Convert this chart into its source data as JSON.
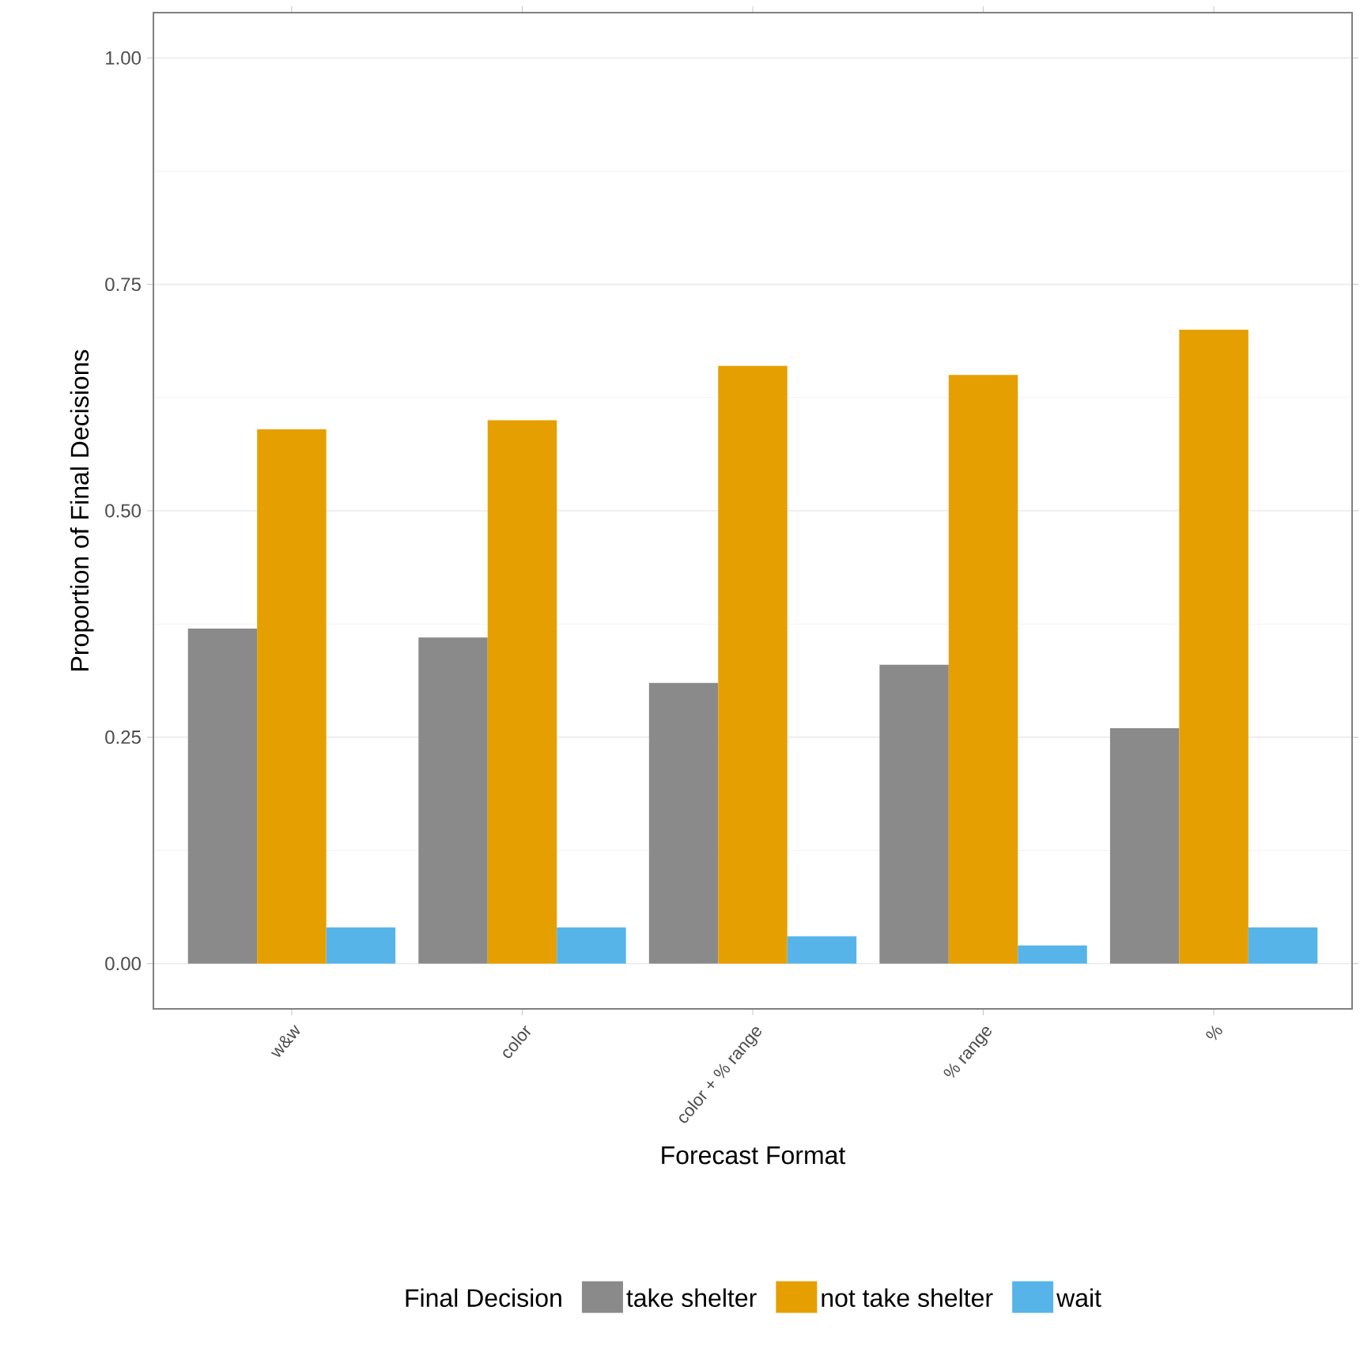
{
  "chart_data": {
    "type": "bar",
    "xlabel": "Forecast Format",
    "ylabel": "Proportion of Final Decisions",
    "legend_title": "Final Decision",
    "categories": [
      "w&w",
      "color",
      "color + % range",
      "% range",
      "%"
    ],
    "series": [
      {
        "name": "take shelter",
        "color": "#8a8a8a",
        "values": [
          0.37,
          0.36,
          0.31,
          0.33,
          0.26
        ]
      },
      {
        "name": "not take shelter",
        "color": "#e69f00",
        "values": [
          0.59,
          0.6,
          0.66,
          0.65,
          0.7
        ]
      },
      {
        "name": "wait",
        "color": "#56b4e9",
        "values": [
          0.04,
          0.04,
          0.03,
          0.02,
          0.04
        ]
      }
    ],
    "ylim": [
      -0.05,
      1.05
    ],
    "yticks": [
      {
        "value": 0,
        "label": "0.00"
      },
      {
        "value": 0.25,
        "label": "0.25"
      },
      {
        "value": 0.5,
        "label": "0.50"
      },
      {
        "value": 0.75,
        "label": "0.75"
      },
      {
        "value": 1,
        "label": "1.00"
      }
    ],
    "grid": "y",
    "legend": "bottom"
  }
}
